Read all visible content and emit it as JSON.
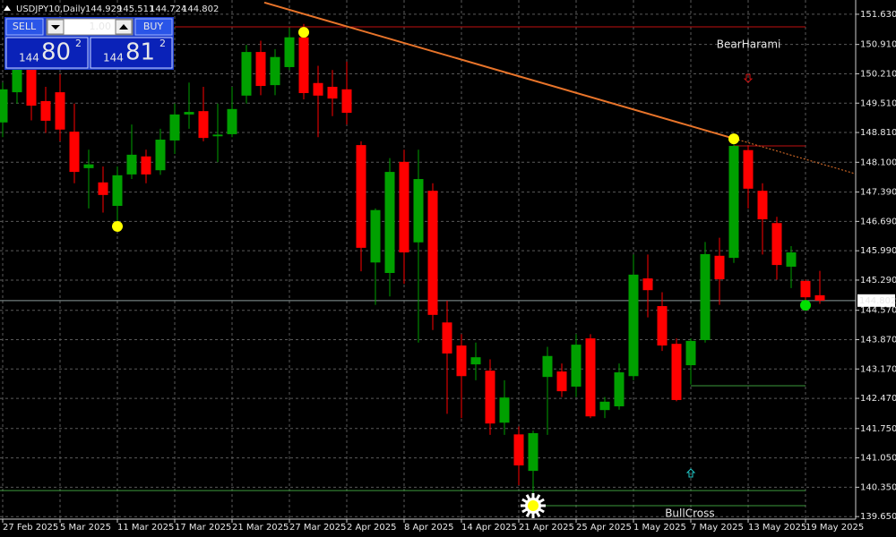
{
  "chart_data": {
    "type": "candlestick",
    "title": "USDJPY10,Daily",
    "x": [
      "27 Feb 2025",
      null,
      null,
      null,
      "5 Mar 2025",
      null,
      null,
      null,
      "11 Mar 2025",
      null,
      null,
      null,
      "17 Mar 2025",
      null,
      null,
      null,
      "21 Mar 2025",
      null,
      null,
      null,
      "27 Mar 2025",
      null,
      null,
      null,
      "2 Apr 2025",
      null,
      null,
      null,
      "8 Apr 2025",
      null,
      null,
      null,
      "14 Apr 2025",
      null,
      null,
      null,
      "21 Apr 2025",
      null,
      null,
      null,
      "25 Apr 2025",
      null,
      null,
      null,
      "1 May 2025",
      null,
      null,
      null,
      "7 May 2025",
      null,
      null,
      null,
      "13 May 2025",
      null,
      null,
      null,
      "19 May 2025",
      null
    ],
    "open": [
      149.05,
      149.77,
      150.37,
      149.56,
      149.77,
      148.83,
      147.96,
      147.62,
      147.06,
      147.81,
      148.24,
      147.91,
      148.62,
      149.24,
      149.32,
      148.72,
      148.77,
      149.69,
      150.73,
      149.94,
      150.37,
      151.08,
      149.99,
      149.9,
      149.84,
      148.51,
      145.71,
      145.46,
      148.11,
      146.19,
      147.42,
      144.28,
      143.73,
      143.28,
      143.13,
      141.89,
      141.61,
      140.74,
      142.98,
      143.11,
      142.75,
      143.9,
      142.19,
      142.28,
      143.0,
      145.33,
      144.67,
      143.77,
      143.26,
      143.86,
      145.87,
      145.82,
      148.39,
      147.42,
      146.65,
      145.61,
      145.27,
      144.929
    ],
    "high": [
      150.0,
      150.6,
      150.6,
      149.9,
      150.2,
      149.5,
      148.4,
      148.0,
      148.0,
      149.0,
      148.4,
      148.9,
      149.5,
      150.0,
      149.9,
      149.5,
      149.9,
      150.9,
      151.0,
      150.8,
      151.3,
      151.4,
      150.4,
      150.3,
      150.5,
      148.6,
      147.0,
      148.2,
      148.4,
      148.4,
      147.6,
      144.8,
      144.0,
      143.8,
      143.4,
      142.9,
      141.8,
      141.7,
      143.7,
      143.3,
      144.0,
      144.0,
      142.5,
      143.3,
      145.9,
      145.9,
      145.0,
      143.9,
      143.9,
      146.2,
      146.3,
      148.6,
      148.5,
      147.6,
      146.8,
      146.1,
      145.3,
      145.511
    ],
    "low": [
      148.7,
      149.5,
      149.1,
      148.8,
      148.6,
      147.6,
      147.0,
      146.9,
      146.7,
      147.7,
      147.6,
      147.8,
      148.3,
      148.9,
      148.6,
      148.1,
      148.7,
      149.5,
      149.7,
      149.7,
      150.3,
      149.6,
      148.7,
      149.2,
      149.0,
      145.5,
      144.7,
      144.9,
      145.2,
      143.8,
      144.1,
      142.1,
      142.0,
      142.9,
      141.6,
      141.6,
      140.4,
      139.9,
      141.6,
      142.5,
      142.5,
      142.0,
      142.0,
      142.2,
      142.9,
      144.4,
      143.6,
      142.4,
      142.8,
      143.8,
      144.7,
      145.7,
      147.0,
      145.9,
      145.3,
      145.1,
      144.7,
      144.724
    ],
    "close": [
      149.84,
      150.37,
      149.45,
      149.09,
      148.88,
      147.87,
      148.05,
      147.32,
      147.79,
      148.28,
      147.81,
      148.64,
      149.24,
      149.3,
      148.68,
      148.76,
      149.37,
      150.73,
      149.92,
      150.61,
      151.08,
      149.75,
      149.69,
      149.62,
      149.28,
      146.06,
      146.96,
      147.87,
      145.95,
      147.7,
      144.46,
      143.54,
      143.0,
      143.45,
      141.87,
      142.49,
      140.87,
      141.64,
      143.48,
      142.64,
      143.75,
      142.04,
      142.39,
      143.09,
      145.42,
      145.05,
      143.73,
      142.43,
      143.84,
      145.91,
      145.31,
      148.49,
      147.47,
      146.74,
      145.65,
      145.95,
      144.88,
      144.802
    ],
    "up_color": "#00a000",
    "down_color": "#ff0000",
    "ylim": [
      139.59,
      151.97
    ],
    "yticks": [
      {
        "value": 151.63,
        "label": "151.630"
      },
      {
        "value": 150.91,
        "label": "150.910"
      },
      {
        "value": 150.21,
        "label": "150.210"
      },
      {
        "value": 149.51,
        "label": "149.510"
      },
      {
        "value": 148.81,
        "label": "148.810"
      },
      {
        "value": 148.1,
        "label": "148.100"
      },
      {
        "value": 147.39,
        "label": "147.390"
      },
      {
        "value": 146.69,
        "label": "146.690"
      },
      {
        "value": 145.99,
        "label": "145.990"
      },
      {
        "value": 145.29,
        "label": "145.290"
      },
      {
        "value": 144.57,
        "label": "144.570"
      },
      {
        "value": 143.87,
        "label": "143.870"
      },
      {
        "value": 143.17,
        "label": "143.170"
      },
      {
        "value": 142.47,
        "label": "142.470"
      },
      {
        "value": 141.75,
        "label": "141.750"
      },
      {
        "value": 141.05,
        "label": "141.050"
      },
      {
        "value": 140.35,
        "label": "140.350"
      },
      {
        "value": 139.65,
        "label": "139.650"
      }
    ],
    "grid": true,
    "levels": [
      {
        "value": 151.33,
        "from": 12,
        "to": 56,
        "color": "#c01010"
      },
      {
        "value": 148.49,
        "from": 51,
        "to": 56,
        "color": "#c01010"
      },
      {
        "value": 142.77,
        "from": 48,
        "to": 56,
        "color": "#3c9a3c"
      },
      {
        "value": 140.27,
        "from": 0,
        "to": 56,
        "color": "#3c9a3c"
      },
      {
        "value": 139.91,
        "from": 37,
        "to": 56,
        "color": "#3c9a3c"
      }
    ],
    "trendline": {
      "x": [
        18.25,
        51.06
      ],
      "y": [
        151.91,
        148.66
      ],
      "color": "#e8742a"
    },
    "markers": [
      {
        "x": 8,
        "y": 146.57,
        "shape": "dot",
        "color": "#ffff00"
      },
      {
        "x": 21,
        "y": 151.2,
        "shape": "dot",
        "color": "#ffff00"
      },
      {
        "x": 51,
        "y": 148.66,
        "shape": "dot",
        "color": "#ffff00"
      },
      {
        "x": 56,
        "y": 144.69,
        "shape": "dot",
        "color": "#00e000"
      },
      {
        "x": 37,
        "y": 139.91,
        "shape": "sun",
        "color": "#ffff00"
      },
      {
        "x": 52,
        "y": 150.09,
        "shape": "down",
        "color": "#d01010"
      },
      {
        "x": 48,
        "y": 140.7,
        "shape": "up",
        "color": "#20c8c8"
      }
    ],
    "annotations": [
      {
        "text": "BearHarami",
        "x": 49.8,
        "y": 150.9,
        "color": "#d01030"
      },
      {
        "text": "BullCross",
        "x": 46.2,
        "y": 139.72,
        "color": "#20c8c8"
      }
    ]
  },
  "trade_panel": {
    "sell": "SELL",
    "buy": "BUY",
    "volume": "1.00",
    "bid_big": "144",
    "bid_main": "80",
    "bid_small": "2",
    "ask_big": "144",
    "ask_main": "81",
    "ask_small": "2"
  }
}
